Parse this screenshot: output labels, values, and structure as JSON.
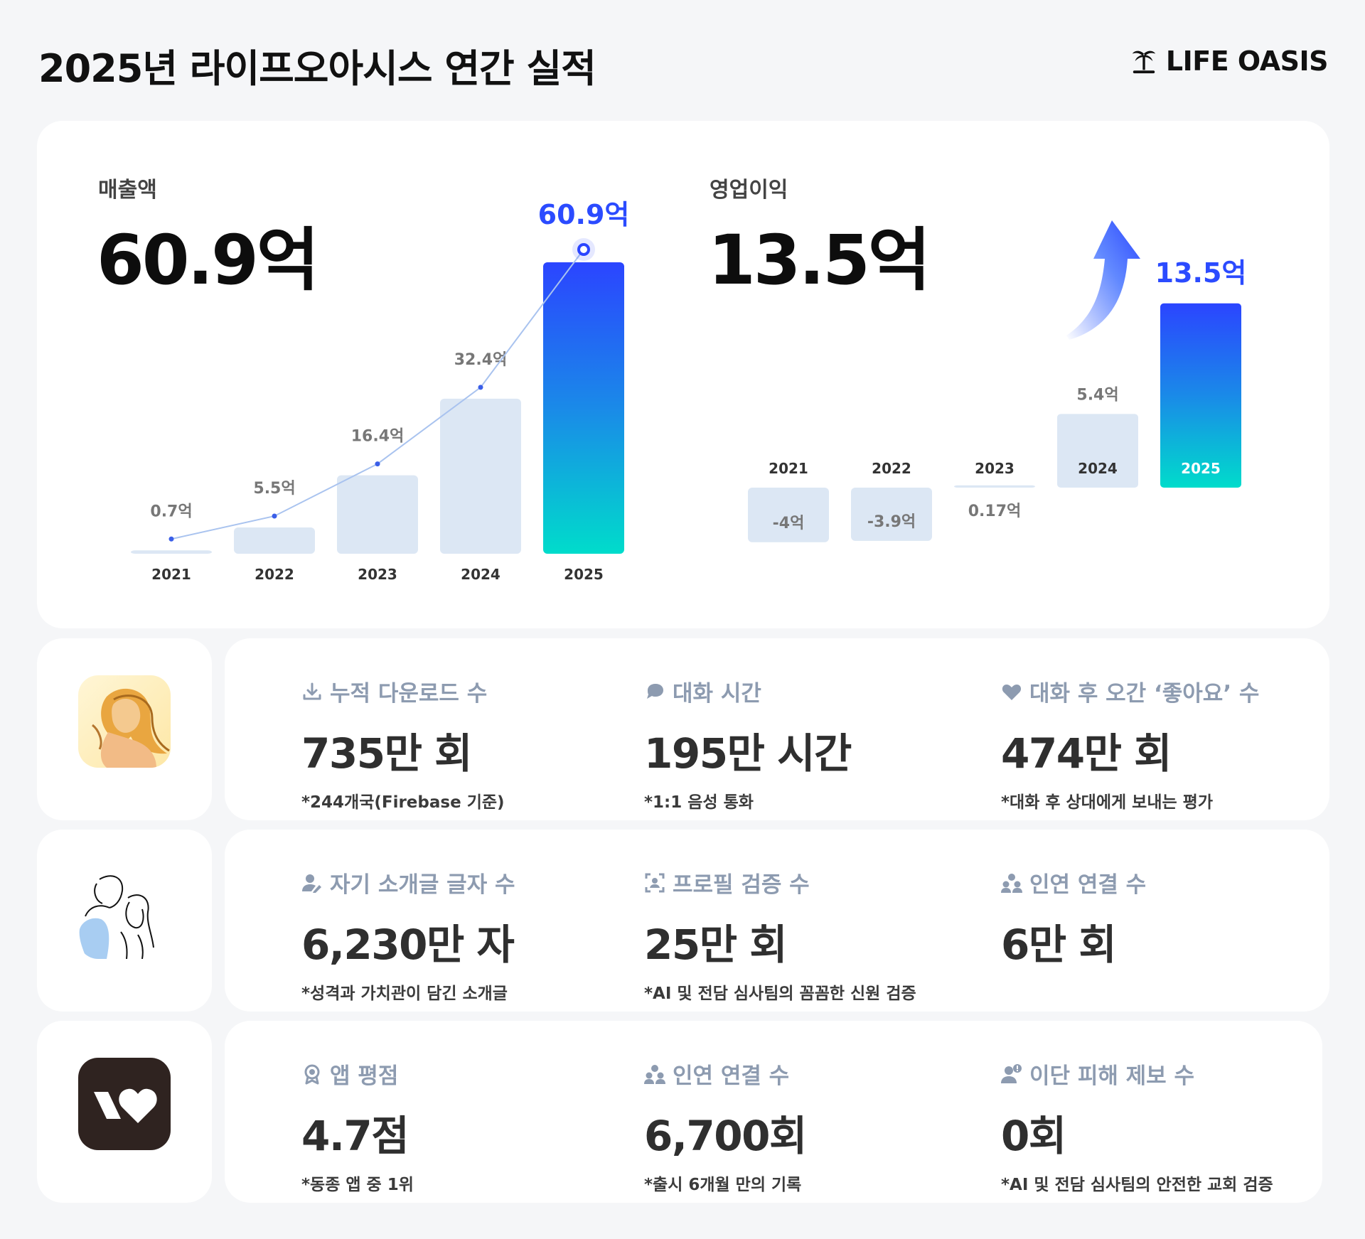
{
  "page": {
    "title": "2025년 라이프오아시스 연간 실적",
    "brand": "LIFE OASIS"
  },
  "revenue": {
    "label": "매출액",
    "value": "60.9억"
  },
  "operating_profit": {
    "label": "영업이익",
    "value": "13.5억"
  },
  "chart_data": [
    {
      "type": "bar",
      "title": "매출액",
      "categories": [
        "2021",
        "2022",
        "2023",
        "2024",
        "2025"
      ],
      "values": [
        0.7,
        5.5,
        16.4,
        32.4,
        60.9
      ],
      "data_labels": [
        "0.7억",
        "5.5억",
        "16.4억",
        "32.4억",
        "60.9억"
      ],
      "highlight_index": 4,
      "trend_line": true,
      "ylim": [
        0,
        60.9
      ],
      "colors": {
        "bar": "#dce7f4",
        "highlight_top": "#2b45ff",
        "highlight_bottom": "#00dccb",
        "label": "#2b4bff"
      }
    },
    {
      "type": "bar",
      "title": "영업이익",
      "categories": [
        "2021",
        "2022",
        "2023",
        "2024",
        "2025"
      ],
      "values": [
        -4,
        -3.9,
        0.17,
        5.4,
        13.5
      ],
      "data_labels": [
        "-4억",
        "-3.9억",
        "0.17억",
        "5.4억",
        "13.5억"
      ],
      "highlight_index": 4,
      "ylim": [
        -4,
        13.5
      ],
      "colors": {
        "bar": "#dce7f4",
        "highlight_top": "#2b45ff",
        "highlight_bottom": "#00dccb",
        "label": "#2b4bff"
      }
    }
  ],
  "rows": [
    {
      "icon": "woman-illustration-app-icon",
      "stats": [
        {
          "icon": "download-icon",
          "title": "누적 다운로드 수",
          "value": "735만 회",
          "note": "*244개국(Firebase 기준)"
        },
        {
          "icon": "chat-bubble-icon",
          "title": "대화 시간",
          "value": "195만 시간",
          "note": "*1:1 음성 통화"
        },
        {
          "icon": "heart-icon",
          "title": "대화 후 오간 ‘좋아요’ 수",
          "value": "474만 회",
          "note": "*대화 후 상대에게 보내는 평가"
        }
      ]
    },
    {
      "icon": "couple-sketch-app-icon",
      "stats": [
        {
          "icon": "user-edit-icon",
          "title": "자기 소개글 글자 수",
          "value": "6,230만 자",
          "note": "*성격과 가치관이 담긴 소개글"
        },
        {
          "icon": "face-scan-icon",
          "title": "프로필 검증 수",
          "value": "25만 회",
          "note": "*AI 및 전담 심사팀의 꼼꼼한 신원 검증"
        },
        {
          "icon": "group-users-icon",
          "title": "인연 연결 수",
          "value": "6만 회",
          "note": ""
        }
      ]
    },
    {
      "icon": "heart-logo-app-icon",
      "stats": [
        {
          "icon": "badge-icon",
          "title": "앱 평점",
          "value": "4.7점",
          "note": "*동종 앱 중 1위"
        },
        {
          "icon": "group-users-icon",
          "title": "인연 연결 수",
          "value": "6,700회",
          "note": "*출시 6개월 만의 기록"
        },
        {
          "icon": "user-alert-icon",
          "title": "이단 피해 제보 수",
          "value": "0회",
          "note": "*AI 및 전담 심사팀의 안전한 교회 검증"
        }
      ]
    }
  ]
}
